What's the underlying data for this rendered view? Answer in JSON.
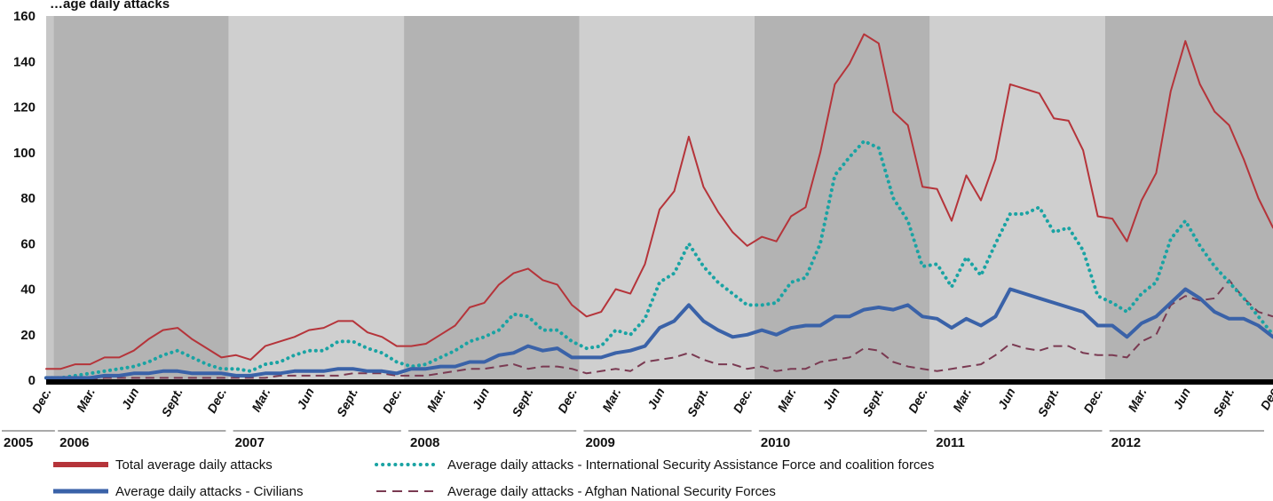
{
  "chart_data": {
    "type": "line",
    "title": "",
    "title_partial": "…age daily attacks",
    "ylabel": "",
    "xlabel": "",
    "ylim": [
      0,
      160
    ],
    "yticks": [
      0,
      20,
      40,
      60,
      80,
      100,
      120,
      140,
      160
    ],
    "month_tick_labels": [
      "Dec.",
      "Mar.",
      "Jun",
      "Sept.",
      "Dec.",
      "Mar.",
      "Jun",
      "Sept.",
      "Dec.",
      "Mar.",
      "Jun",
      "Sept.",
      "Dec.",
      "Mar.",
      "Jun",
      "Sept.",
      "Dec.",
      "Mar.",
      "Jun",
      "Sept.",
      "Dec.",
      "Mar.",
      "Jun",
      "Sept.",
      "Dec.",
      "Mar.",
      "Jun",
      "Sept.",
      "Dec"
    ],
    "year_labels": [
      "2005",
      "2006",
      "2007",
      "2008",
      "2009",
      "2010",
      "2011",
      "2012"
    ],
    "x_start": "Dec. 2005",
    "x_end": "Dec. 2012",
    "grid": false,
    "legend_position": "bottom",
    "series": [
      {
        "name": "Total average daily attacks",
        "color": "#b5343a",
        "style": "solid-thin",
        "values": [
          5,
          5,
          7,
          7,
          10,
          10,
          13,
          18,
          22,
          23,
          18,
          14,
          10,
          11,
          9,
          15,
          17,
          19,
          22,
          23,
          26,
          26,
          21,
          19,
          15,
          15,
          16,
          20,
          24,
          32,
          34,
          42,
          47,
          49,
          44,
          42,
          33,
          28,
          30,
          40,
          38,
          51,
          75,
          83,
          107,
          85,
          74,
          65,
          59,
          63,
          61,
          72,
          76,
          100,
          130,
          139,
          152,
          148,
          118,
          112,
          85,
          84,
          70,
          90,
          79,
          97,
          130,
          128,
          126,
          115,
          114,
          101,
          72,
          71,
          61,
          79,
          91,
          127,
          149,
          130,
          118,
          112,
          97,
          80,
          67
        ]
      },
      {
        "name": "Average daily attacks - International Security Assistance Force and coalition forces",
        "color": "#1aa3a3",
        "style": "dotted",
        "values": [
          1,
          1,
          2,
          3,
          4,
          5,
          6,
          8,
          11,
          13,
          10,
          7,
          5,
          5,
          4,
          7,
          8,
          11,
          13,
          13,
          17,
          17,
          14,
          12,
          8,
          6,
          7,
          10,
          13,
          17,
          19,
          22,
          29,
          28,
          22,
          22,
          17,
          14,
          15,
          22,
          20,
          27,
          43,
          47,
          60,
          50,
          43,
          38,
          33,
          33,
          34,
          43,
          45,
          60,
          90,
          98,
          105,
          102,
          80,
          70,
          50,
          51,
          41,
          54,
          46,
          60,
          73,
          73,
          76,
          65,
          67,
          57,
          37,
          34,
          30,
          38,
          43,
          62,
          70,
          59,
          50,
          43,
          36,
          28,
          20
        ]
      },
      {
        "name": "Average daily attacks - Civilians",
        "color": "#3a62a8",
        "style": "solid-thick",
        "values": [
          1,
          1,
          1,
          1,
          2,
          2,
          3,
          3,
          4,
          4,
          3,
          3,
          3,
          2,
          2,
          3,
          3,
          4,
          4,
          4,
          5,
          5,
          4,
          4,
          3,
          5,
          5,
          6,
          6,
          8,
          8,
          11,
          12,
          15,
          13,
          14,
          10,
          10,
          10,
          12,
          13,
          15,
          23,
          26,
          33,
          26,
          22,
          19,
          20,
          22,
          20,
          23,
          24,
          24,
          28,
          28,
          31,
          32,
          31,
          33,
          28,
          27,
          23,
          27,
          24,
          28,
          40,
          38,
          36,
          34,
          32,
          30,
          24,
          24,
          19,
          25,
          28,
          34,
          40,
          36,
          30,
          27,
          27,
          24,
          19
        ]
      },
      {
        "name": "Average daily attacks - Afghan National Security Forces",
        "color": "#7a3a52",
        "style": "dashed",
        "values": [
          0,
          0,
          0,
          0,
          1,
          1,
          1,
          1,
          1,
          1,
          1,
          1,
          1,
          1,
          1,
          1,
          2,
          2,
          2,
          2,
          2,
          3,
          3,
          3,
          2,
          2,
          2,
          3,
          4,
          5,
          5,
          6,
          7,
          5,
          6,
          6,
          5,
          3,
          4,
          5,
          4,
          8,
          9,
          10,
          12,
          9,
          7,
          7,
          5,
          6,
          4,
          5,
          5,
          8,
          9,
          10,
          14,
          13,
          8,
          6,
          5,
          4,
          5,
          6,
          7,
          11,
          16,
          14,
          13,
          15,
          15,
          12,
          11,
          11,
          10,
          17,
          20,
          33,
          37,
          35,
          36,
          44,
          36,
          30,
          28
        ]
      }
    ]
  },
  "legend": {
    "total": "Total average daily attacks",
    "isaf": "Average daily attacks - International Security Assistance Force and coalition forces",
    "civilians": "Average daily attacks - Civilians",
    "ansf": "Average daily attacks - Afghan National Security Forces"
  }
}
